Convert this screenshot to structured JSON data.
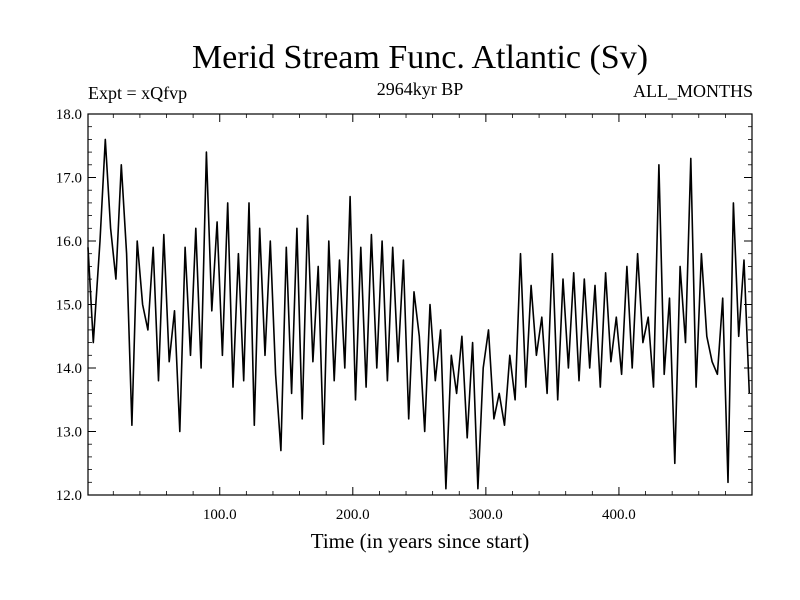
{
  "header": {
    "title": "Merid Stream Func. Atlantic (Sv)",
    "expt": "Expt = xQfvp",
    "subtitle": "2964kyr BP",
    "period": "ALL_MONTHS"
  },
  "colors": {
    "line": "#000000",
    "background": "#ffffff"
  },
  "chart_data": {
    "type": "line",
    "title": "Merid Stream Func. Atlantic (Sv)",
    "xlabel": "Time (in years since start)",
    "ylabel": "",
    "xlim": [
      1,
      500
    ],
    "ylim": [
      12.0,
      18.0
    ],
    "x_ticks": [
      100,
      200,
      300,
      400
    ],
    "x_tick_labels": [
      "100.0",
      "200.0",
      "300.0",
      "400.0"
    ],
    "y_ticks": [
      12,
      13,
      14,
      15,
      16,
      17,
      18
    ],
    "y_tick_labels": [
      "12.0",
      "13.0",
      "14.0",
      "15.0",
      "16.0",
      "17.0",
      "18.0"
    ],
    "grid": false,
    "series": [
      {
        "name": "Merid Stream Func. Atlantic",
        "x": [
          1,
          5,
          10,
          14,
          18,
          22,
          26,
          30,
          34,
          38,
          42,
          46,
          50,
          54,
          58,
          62,
          66,
          70,
          74,
          78,
          82,
          86,
          90,
          94,
          98,
          102,
          106,
          110,
          114,
          118,
          122,
          126,
          130,
          134,
          138,
          142,
          146,
          150,
          154,
          158,
          162,
          166,
          170,
          174,
          178,
          182,
          186,
          190,
          194,
          198,
          202,
          206,
          210,
          214,
          218,
          222,
          226,
          230,
          234,
          238,
          242,
          246,
          250,
          254,
          258,
          262,
          266,
          270,
          274,
          278,
          282,
          286,
          290,
          294,
          298,
          302,
          306,
          310,
          314,
          318,
          322,
          326,
          330,
          334,
          338,
          342,
          346,
          350,
          354,
          358,
          362,
          366,
          370,
          374,
          378,
          382,
          386,
          390,
          394,
          398,
          402,
          406,
          410,
          414,
          418,
          422,
          426,
          430,
          434,
          438,
          442,
          446,
          450,
          454,
          458,
          462,
          466,
          470,
          474,
          478,
          482,
          486,
          490,
          494,
          498
        ],
        "values": [
          15.9,
          14.4,
          16.0,
          17.6,
          16.2,
          15.4,
          17.2,
          15.8,
          13.1,
          16.0,
          15.0,
          14.6,
          15.9,
          13.8,
          16.1,
          14.1,
          14.9,
          13.0,
          15.9,
          14.2,
          16.2,
          14.0,
          17.4,
          14.9,
          16.3,
          14.2,
          16.6,
          13.7,
          15.8,
          13.8,
          16.6,
          13.1,
          16.2,
          14.2,
          16.0,
          13.9,
          12.7,
          15.9,
          13.6,
          16.2,
          13.2,
          16.4,
          14.1,
          15.6,
          12.8,
          16.0,
          13.8,
          15.7,
          14.0,
          16.7,
          13.5,
          15.9,
          13.7,
          16.1,
          14.0,
          16.0,
          13.8,
          15.9,
          14.1,
          15.7,
          13.2,
          15.2,
          14.5,
          13.0,
          15.0,
          13.8,
          14.6,
          12.1,
          14.2,
          13.6,
          14.5,
          12.9,
          14.4,
          12.1,
          14.0,
          14.6,
          13.2,
          13.6,
          13.1,
          14.2,
          13.5,
          15.8,
          13.7,
          15.3,
          14.2,
          14.8,
          13.6,
          15.8,
          13.5,
          15.4,
          14.0,
          15.5,
          13.8,
          15.4,
          14.0,
          15.3,
          13.7,
          15.5,
          14.1,
          14.8,
          13.9,
          15.6,
          14.0,
          15.8,
          14.4,
          14.8,
          13.7,
          17.2,
          13.9,
          15.1,
          12.5,
          15.6,
          14.4,
          17.3,
          13.7,
          15.8,
          14.5,
          14.1,
          13.9,
          15.1,
          12.2,
          16.6,
          14.5,
          15.7,
          13.6
        ]
      }
    ]
  }
}
